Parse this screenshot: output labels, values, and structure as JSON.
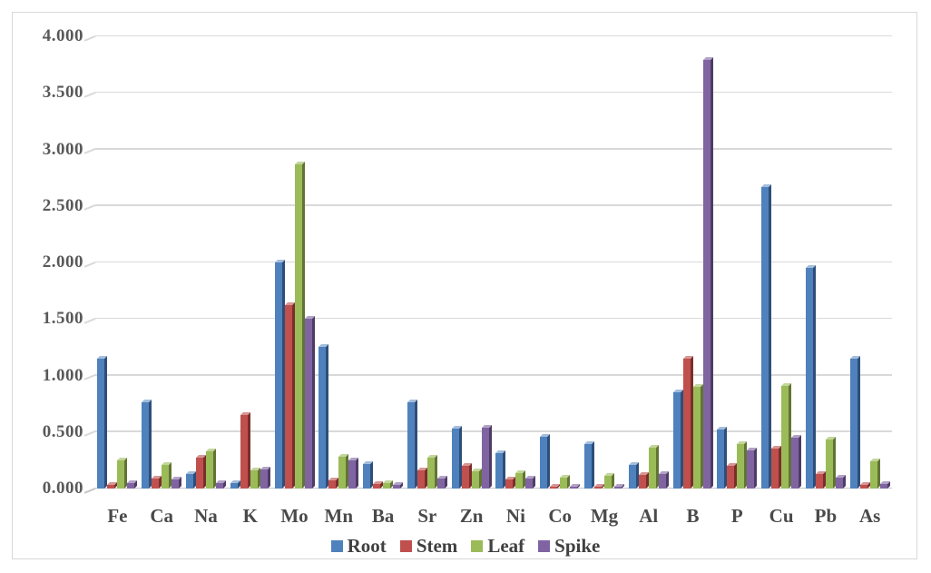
{
  "chart": {
    "background": "#FFFFFF",
    "frame_border_color": "#D8D8D8",
    "gridline_color": "#D9D9D9",
    "axis_text_color": "#595959",
    "legend_text_color": "#404040"
  },
  "chart_data": {
    "type": "bar",
    "title": "",
    "xlabel": "",
    "ylabel": "",
    "categories": [
      "Fe",
      "Ca",
      "Na",
      "K",
      "Mo",
      "Mn",
      "Ba",
      "Sr",
      "Zn",
      "Ni",
      "Co",
      "Mg",
      "Al",
      "B",
      "P",
      "Cu",
      "Pb",
      "As"
    ],
    "series": [
      {
        "name": "Root",
        "color": "#4F81BD",
        "side_color": "#2E4E79",
        "top_color": "#A3BEDC",
        "values": [
          1.15,
          0.76,
          0.13,
          0.05,
          2.0,
          1.25,
          0.22,
          0.76,
          0.53,
          0.31,
          0.46,
          0.39,
          0.21,
          0.85,
          0.52,
          2.67,
          1.95,
          1.15
        ]
      },
      {
        "name": "Stem",
        "color": "#C0504D",
        "side_color": "#7A2E2C",
        "top_color": "#D79694",
        "values": [
          0.03,
          0.09,
          0.27,
          0.65,
          1.62,
          0.07,
          0.04,
          0.16,
          0.2,
          0.08,
          0.02,
          0.02,
          0.12,
          1.15,
          0.2,
          0.35,
          0.13,
          0.03
        ]
      },
      {
        "name": "Leaf",
        "color": "#9BBB59",
        "side_color": "#617434",
        "top_color": "#C3D69B",
        "values": [
          0.25,
          0.21,
          0.33,
          0.16,
          2.87,
          0.28,
          0.05,
          0.27,
          0.15,
          0.14,
          0.1,
          0.11,
          0.36,
          0.9,
          0.39,
          0.91,
          0.43,
          0.24
        ]
      },
      {
        "name": "Spike",
        "color": "#8064A2",
        "side_color": "#4E3C64",
        "top_color": "#B2A2C7",
        "values": [
          0.05,
          0.08,
          0.05,
          0.17,
          1.5,
          0.25,
          0.03,
          0.09,
          0.54,
          0.09,
          0.02,
          0.02,
          0.13,
          3.79,
          0.34,
          0.45,
          0.1,
          0.04
        ]
      }
    ],
    "ylim": [
      0,
      4
    ],
    "yticks": [
      "0.000",
      "0.500",
      "1.000",
      "1.500",
      "2.000",
      "2.500",
      "3.000",
      "3.500",
      "4.000"
    ],
    "grid": true,
    "legend_position": "bottom"
  }
}
